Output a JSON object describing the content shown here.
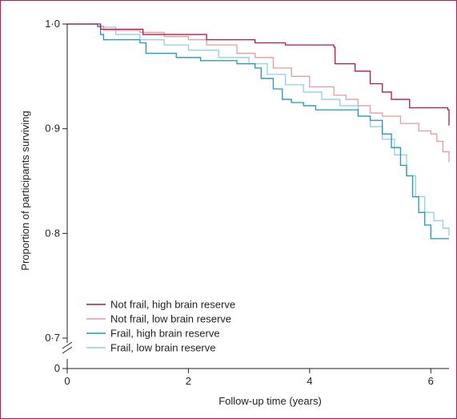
{
  "chart_data": {
    "type": "line",
    "title": "",
    "xlabel": "Follow-up time (years)",
    "ylabel": "Proportion of participants surviving",
    "xlim": [
      0,
      6.3
    ],
    "ylim": [
      0.7,
      1.0
    ],
    "y_axis_break": true,
    "y_break_label": "0",
    "x_ticks": [
      0,
      2,
      4,
      6
    ],
    "x_tick_labels": [
      "0",
      "2",
      "4",
      "6"
    ],
    "y_ticks": [
      0.7,
      0.8,
      0.9,
      1.0
    ],
    "y_tick_labels": [
      "0·7",
      "0·8",
      "0·9",
      "1·0"
    ],
    "grid": false,
    "legend_position": "bottom-left",
    "step": true,
    "series": [
      {
        "name": "Not frail, high brain reserve",
        "color": "#b5174a",
        "points": [
          [
            0,
            1.0
          ],
          [
            0.52,
            1.0
          ],
          [
            0.55,
            0.995
          ],
          [
            1.2,
            0.995
          ],
          [
            1.25,
            0.99
          ],
          [
            2.25,
            0.99
          ],
          [
            2.3,
            0.985
          ],
          [
            3.05,
            0.985
          ],
          [
            3.1,
            0.982
          ],
          [
            3.6,
            0.98
          ],
          [
            4.4,
            0.978
          ],
          [
            4.42,
            0.962
          ],
          [
            4.75,
            0.955
          ],
          [
            5.0,
            0.943
          ],
          [
            5.2,
            0.935
          ],
          [
            5.35,
            0.928
          ],
          [
            5.65,
            0.92
          ],
          [
            6.28,
            0.918
          ],
          [
            6.3,
            0.903
          ]
        ]
      },
      {
        "name": "Not frail, low brain reserve",
        "color": "#e89a9c",
        "points": [
          [
            0,
            1.0
          ],
          [
            0.5,
            0.998
          ],
          [
            0.6,
            0.994
          ],
          [
            1.2,
            0.992
          ],
          [
            1.6,
            0.988
          ],
          [
            2.0,
            0.985
          ],
          [
            2.3,
            0.98
          ],
          [
            2.8,
            0.972
          ],
          [
            3.1,
            0.968
          ],
          [
            3.4,
            0.958
          ],
          [
            3.7,
            0.95
          ],
          [
            4.0,
            0.94
          ],
          [
            4.4,
            0.932
          ],
          [
            4.6,
            0.928
          ],
          [
            4.8,
            0.922
          ],
          [
            5.0,
            0.915
          ],
          [
            5.2,
            0.912
          ],
          [
            5.5,
            0.905
          ],
          [
            5.8,
            0.898
          ],
          [
            6.0,
            0.895
          ],
          [
            6.1,
            0.888
          ],
          [
            6.2,
            0.878
          ],
          [
            6.3,
            0.868
          ]
        ]
      },
      {
        "name": "Frail, high brain reserve",
        "color": "#1a9ab7",
        "points": [
          [
            0,
            1.0
          ],
          [
            0.5,
            0.998
          ],
          [
            0.55,
            0.99
          ],
          [
            0.6,
            0.985
          ],
          [
            1.2,
            0.982
          ],
          [
            1.3,
            0.972
          ],
          [
            1.6,
            0.972
          ],
          [
            1.8,
            0.968
          ],
          [
            2.2,
            0.965
          ],
          [
            2.8,
            0.962
          ],
          [
            3.1,
            0.958
          ],
          [
            3.2,
            0.948
          ],
          [
            3.4,
            0.938
          ],
          [
            3.55,
            0.928
          ],
          [
            3.7,
            0.925
          ],
          [
            3.9,
            0.922
          ],
          [
            4.1,
            0.918
          ],
          [
            4.5,
            0.918
          ],
          [
            4.8,
            0.912
          ],
          [
            5.0,
            0.908
          ],
          [
            5.2,
            0.895
          ],
          [
            5.35,
            0.882
          ],
          [
            5.5,
            0.865
          ],
          [
            5.6,
            0.855
          ],
          [
            5.7,
            0.835
          ],
          [
            5.8,
            0.82
          ],
          [
            5.9,
            0.808
          ],
          [
            6.0,
            0.795
          ],
          [
            6.3,
            0.795
          ]
        ]
      },
      {
        "name": "Frail, low brain reserve",
        "color": "#8fd0e6",
        "points": [
          [
            0,
            1.0
          ],
          [
            0.5,
            0.997
          ],
          [
            0.8,
            0.99
          ],
          [
            1.2,
            0.985
          ],
          [
            1.6,
            0.98
          ],
          [
            2.0,
            0.975
          ],
          [
            2.5,
            0.968
          ],
          [
            3.0,
            0.962
          ],
          [
            3.3,
            0.952
          ],
          [
            3.6,
            0.942
          ],
          [
            3.9,
            0.935
          ],
          [
            4.2,
            0.928
          ],
          [
            4.5,
            0.922
          ],
          [
            4.8,
            0.912
          ],
          [
            5.0,
            0.902
          ],
          [
            5.2,
            0.89
          ],
          [
            5.4,
            0.875
          ],
          [
            5.6,
            0.855
          ],
          [
            5.75,
            0.835
          ],
          [
            5.9,
            0.82
          ],
          [
            6.05,
            0.812
          ],
          [
            6.2,
            0.805
          ],
          [
            6.3,
            0.798
          ]
        ]
      }
    ]
  }
}
